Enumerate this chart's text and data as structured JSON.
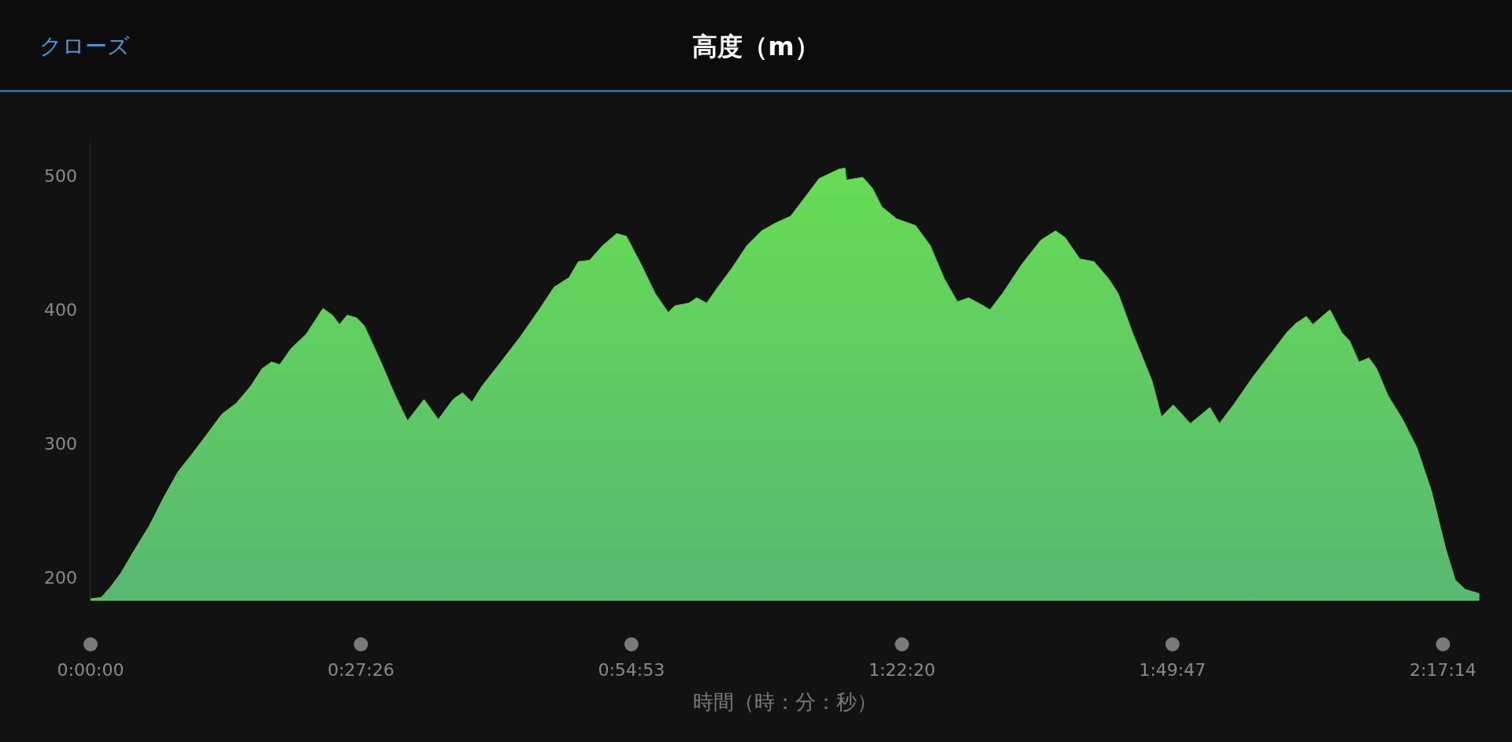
{
  "chart_data": {
    "type": "area",
    "title": "高度（m）",
    "xlabel": "時間（時：分：秒）",
    "annotations": [
      "クローズ"
    ],
    "x": [
      0,
      0.018,
      0.034,
      0.051,
      0.075,
      0.1,
      0.124,
      0.148,
      0.173,
      0.197,
      0.222,
      0.246,
      0.271,
      0.29,
      0.306,
      0.32,
      0.339,
      0.365,
      0.393,
      0.409,
      0.421,
      0.434,
      0.45,
      0.463,
      0.491,
      0.515,
      0.536,
      0.564,
      0.588,
      0.613,
      0.629,
      0.645,
      0.662,
      0.694,
      0.727,
      0.76,
      0.784,
      0.809,
      0.825,
      0.844,
      0.866,
      0.89,
      0.906,
      0.931,
      0.955,
      0.977,
      0.988,
      1.012,
      1.025,
      1.042,
      1.061,
      1.086,
      1.11,
      1.135,
      1.159,
      1.184,
      1.208,
      1.232,
      1.265,
      1.276,
      1.278,
      1.306,
      1.322,
      1.338,
      1.363,
      1.395,
      1.42,
      1.444,
      1.466,
      1.485,
      1.51,
      1.521,
      1.542,
      1.575,
      1.607,
      1.632,
      1.648,
      1.673,
      1.697,
      1.722,
      1.738,
      1.762,
      1.795,
      1.811,
      1.831,
      1.86,
      1.893,
      1.909,
      1.933,
      1.966,
      1.999,
      2.023,
      2.039,
      2.056,
      2.067,
      2.08,
      2.096,
      2.116,
      2.129,
      2.145,
      2.162,
      2.175,
      2.194,
      2.219,
      2.243,
      2.268,
      2.292,
      2.308,
      2.325,
      2.348
    ],
    "series": [
      {
        "color": "#62d150",
        "values": [
          184,
          185,
          193,
          203,
          221,
          239,
          260,
          279,
          293,
          307,
          322,
          330,
          343,
          356,
          361,
          359,
          371,
          382,
          401,
          396,
          389,
          396,
          394,
          388,
          361,
          336,
          317,
          333,
          318,
          333,
          338,
          331,
          343,
          361,
          380,
          401,
          417,
          424,
          436,
          437,
          448,
          457,
          455,
          434,
          412,
          398,
          403,
          405,
          409,
          405,
          417,
          432,
          448,
          459,
          465,
          470,
          484,
          498,
          505,
          506,
          497,
          499,
          491,
          477,
          468,
          463,
          448,
          423,
          406,
          409,
          403,
          400,
          412,
          434,
          452,
          459,
          454,
          438,
          436,
          423,
          412,
          383,
          347,
          320,
          329,
          315,
          327,
          315,
          329,
          350,
          369,
          383,
          390,
          395,
          389,
          394,
          400,
          383,
          377,
          361,
          364,
          356,
          336,
          318,
          297,
          264,
          221,
          198,
          191,
          188
        ]
      }
    ],
    "xticks": [
      {
        "value": 0,
        "label": "0:00:00"
      },
      {
        "value": 0.45722,
        "label": "0:27:26"
      },
      {
        "value": 0.91472,
        "label": "0:54:53"
      },
      {
        "value": 1.37222,
        "label": "1:22:20"
      },
      {
        "value": 1.82972,
        "label": "1:49:47"
      },
      {
        "value": 2.28722,
        "label": "2:17:14"
      }
    ],
    "yticks": [
      200,
      300,
      400,
      500
    ],
    "xlim": [
      0,
      2.348
    ],
    "ylim": [
      183,
      525
    ],
    "grid": false,
    "marker": "none"
  }
}
